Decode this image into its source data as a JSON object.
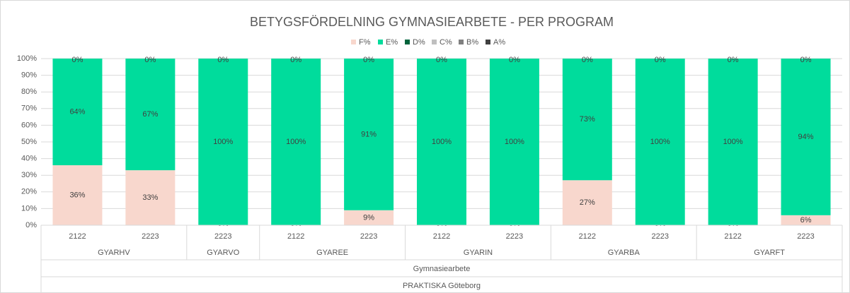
{
  "chart_data": {
    "type": "stacked_bar",
    "title": "BETYGSFÖRDELNING GYMNASIEARBETE - PER PROGRAM",
    "groups": [
      {
        "name": "GYARHV",
        "categories": [
          "2122",
          "2223"
        ]
      },
      {
        "name": "GYARVO",
        "categories": [
          "2223"
        ]
      },
      {
        "name": "GYAREE",
        "categories": [
          "2122",
          "2223"
        ]
      },
      {
        "name": "GYARIN",
        "categories": [
          "2122",
          "2223"
        ]
      },
      {
        "name": "GYARBA",
        "categories": [
          "2122",
          "2223"
        ]
      },
      {
        "name": "GYARFT",
        "categories": [
          "2122",
          "2223"
        ]
      }
    ],
    "group_level_2": "Gymnasiearbete",
    "group_level_3": "PRAKTISKA Göteborg",
    "series": [
      {
        "name": "F%",
        "color": "#f8d7cd",
        "values": [
          36,
          33,
          0,
          0,
          9,
          0,
          0,
          27,
          0,
          0,
          6
        ],
        "value_labels": [
          "36%",
          "33%",
          "0%",
          "0%",
          "9%",
          "0%",
          "0%",
          "27%",
          "0%",
          "0%",
          "6%"
        ]
      },
      {
        "name": "E%",
        "color": "#00dc9c",
        "values": [
          64,
          67,
          100,
          100,
          91,
          100,
          100,
          73,
          100,
          100,
          94
        ],
        "value_labels": [
          "64%",
          "67%",
          "100%",
          "100%",
          "91%",
          "100%",
          "100%",
          "73%",
          "100%",
          "100%",
          "94%"
        ]
      },
      {
        "name": "D%",
        "color": "#00643c",
        "values": [
          0,
          0,
          0,
          0,
          0,
          0,
          0,
          0,
          0,
          0,
          0
        ]
      },
      {
        "name": "C%",
        "color": "#bfbfbf",
        "values": [
          0,
          0,
          0,
          0,
          0,
          0,
          0,
          0,
          0,
          0,
          0
        ]
      },
      {
        "name": "B%",
        "color": "#808080",
        "values": [
          0,
          0,
          0,
          0,
          0,
          0,
          0,
          0,
          0,
          0,
          0
        ]
      },
      {
        "name": "A%",
        "color": "#404040",
        "values": [
          0,
          0,
          0,
          0,
          0,
          0,
          0,
          0,
          0,
          0,
          0
        ],
        "value_labels": [
          "0%",
          "0%",
          "0%",
          "0%",
          "0%",
          "0%",
          "0%",
          "0%",
          "0%",
          "0%",
          "0%"
        ]
      }
    ],
    "ylim": [
      0,
      100
    ],
    "yticks": [
      {
        "value": 0,
        "label": "0%"
      },
      {
        "value": 10,
        "label": "10%"
      },
      {
        "value": 20,
        "label": "20%"
      },
      {
        "value": 30,
        "label": "30%"
      },
      {
        "value": 40,
        "label": "40%"
      },
      {
        "value": 50,
        "label": "50%"
      },
      {
        "value": 60,
        "label": "60%"
      },
      {
        "value": 70,
        "label": "70%"
      },
      {
        "value": 80,
        "label": "80%"
      },
      {
        "value": 90,
        "label": "90%"
      },
      {
        "value": 100,
        "label": "100%"
      }
    ],
    "grid": true,
    "legend": "top"
  }
}
